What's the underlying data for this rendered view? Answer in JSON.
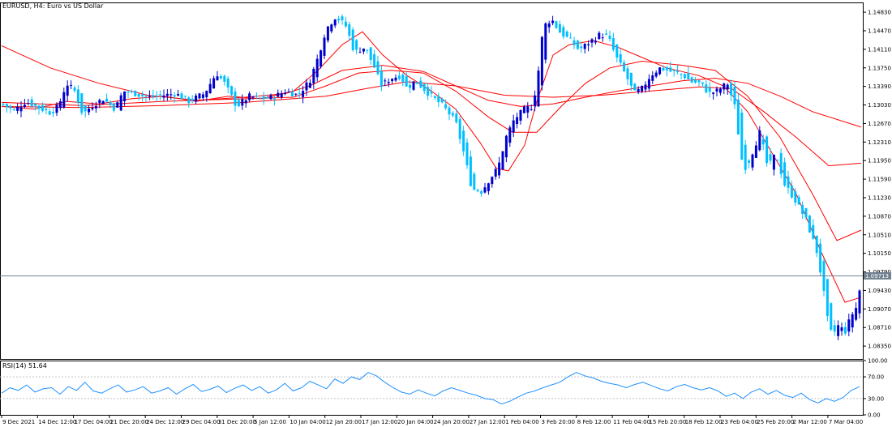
{
  "header": {
    "title": "EURUSD, H4:  Euro vs US Dollar",
    "rsi_label": "RSI(14) 51.64"
  },
  "current_price": "1.09713",
  "colors": {
    "bull": "#0000cd",
    "bear": "#00bfff",
    "ma": "#ff0000",
    "rsi_line": "#1e90ff",
    "current_line": "#708090",
    "grid_dotted": "#c0c0c0"
  },
  "chart_data": [
    {
      "type": "candlestick",
      "title": "EURUSD, H4:  Euro vs US Dollar",
      "ylim": [
        1.081,
        1.1502
      ],
      "y_ticks": [
        "1.14830",
        "1.14470",
        "1.14110",
        "1.13750",
        "1.13390",
        "1.13030",
        "1.12670",
        "1.12310",
        "1.11950",
        "1.11590",
        "1.11230",
        "1.10870",
        "1.10510",
        "1.10150",
        "1.09790",
        "1.09430",
        "1.09070",
        "1.08710",
        "1.08350"
      ],
      "x_ticks": [
        "9 Dec 2021",
        "14 Dec 12:00",
        "17 Dec 04:00",
        "21 Dec 20:00",
        "24 Dec 12:00",
        "29 Dec 04:00",
        "31 Dec 20:00",
        "5 Jan 12:00",
        "10 Jan 04:00",
        "12 Jan 20:00",
        "17 Jan 12:00",
        "20 Jan 04:00",
        "24 Jan 20:00",
        "27 Jan 12:00",
        "1 Feb 04:00",
        "3 Feb 20:00",
        "8 Feb 12:00",
        "11 Feb 04:00",
        "15 Feb 20:00",
        "18 Feb 12:00",
        "23 Feb 04:00",
        "25 Feb 20:00",
        "2 Mar 12:00",
        "7 Mar 04:00"
      ],
      "close_path": [
        [
          0,
          1.1305
        ],
        [
          15,
          1.1292
        ],
        [
          30,
          1.131
        ],
        [
          45,
          1.1298
        ],
        [
          60,
          1.1288
        ],
        [
          70,
          1.13
        ],
        [
          80,
          1.1345
        ],
        [
          90,
          1.133
        ],
        [
          100,
          1.1285
        ],
        [
          110,
          1.13
        ],
        [
          125,
          1.1315
        ],
        [
          140,
          1.1295
        ],
        [
          150,
          1.133
        ],
        [
          165,
          1.1325
        ],
        [
          180,
          1.1318
        ],
        [
          200,
          1.1322
        ],
        [
          215,
          1.1325
        ],
        [
          230,
          1.131
        ],
        [
          250,
          1.1325
        ],
        [
          265,
          1.1365
        ],
        [
          275,
          1.1345
        ],
        [
          290,
          1.13
        ],
        [
          305,
          1.132
        ],
        [
          320,
          1.1315
        ],
        [
          335,
          1.1318
        ],
        [
          350,
          1.133
        ],
        [
          365,
          1.1322
        ],
        [
          380,
          1.135
        ],
        [
          390,
          1.1395
        ],
        [
          400,
          1.145
        ],
        [
          412,
          1.1475
        ],
        [
          425,
          1.1455
        ],
        [
          435,
          1.1405
        ],
        [
          448,
          1.1415
        ],
        [
          460,
          1.1375
        ],
        [
          468,
          1.134
        ],
        [
          480,
          1.1355
        ],
        [
          492,
          1.136
        ],
        [
          500,
          1.1335
        ],
        [
          510,
          1.135
        ],
        [
          520,
          1.1335
        ],
        [
          530,
          1.132
        ],
        [
          545,
          1.13
        ],
        [
          560,
          1.127
        ],
        [
          570,
          1.121
        ],
        [
          580,
          1.114
        ],
        [
          592,
          1.1135
        ],
        [
          602,
          1.116
        ],
        [
          612,
          1.118
        ],
        [
          622,
          1.124
        ],
        [
          632,
          1.1275
        ],
        [
          645,
          1.1295
        ],
        [
          655,
          1.13
        ],
        [
          662,
          1.137
        ],
        [
          668,
          1.1455
        ],
        [
          678,
          1.147
        ],
        [
          688,
          1.1445
        ],
        [
          700,
          1.143
        ],
        [
          712,
          1.141
        ],
        [
          725,
          1.1425
        ],
        [
          738,
          1.144
        ],
        [
          748,
          1.1435
        ],
        [
          758,
          1.1395
        ],
        [
          770,
          1.136
        ],
        [
          780,
          1.1325
        ],
        [
          790,
          1.1335
        ],
        [
          800,
          1.136
        ],
        [
          812,
          1.1375
        ],
        [
          825,
          1.1368
        ],
        [
          840,
          1.1362
        ],
        [
          850,
          1.1348
        ],
        [
          862,
          1.1345
        ],
        [
          872,
          1.1325
        ],
        [
          882,
          1.133
        ],
        [
          895,
          1.1345
        ],
        [
          905,
          1.1295
        ],
        [
          912,
          1.12
        ],
        [
          918,
          1.118
        ],
        [
          928,
          1.122
        ],
        [
          935,
          1.125
        ],
        [
          945,
          1.118
        ],
        [
          955,
          1.121
        ],
        [
          965,
          1.115
        ],
        [
          978,
          1.112
        ],
        [
          992,
          1.108
        ],
        [
          1005,
          1.102
        ],
        [
          1012,
          1.096
        ],
        [
          1018,
          1.089
        ],
        [
          1024,
          1.0855
        ],
        [
          1032,
          1.0875
        ],
        [
          1040,
          1.0862
        ],
        [
          1048,
          1.0895
        ],
        [
          1056,
          1.0915
        ],
        [
          1060,
          1.0971
        ]
      ],
      "moving_averages": [
        {
          "points": [
            [
              0,
              1.1418
            ],
            [
              60,
              1.1375
            ],
            [
              120,
              1.1345
            ],
            [
              180,
              1.1322
            ],
            [
              240,
              1.1312
            ],
            [
              300,
              1.1318
            ],
            [
              350,
              1.1325
            ],
            [
              380,
              1.134
            ],
            [
              420,
              1.137
            ],
            [
              470,
              1.138
            ],
            [
              520,
              1.1368
            ],
            [
              560,
              1.134
            ],
            [
              600,
              1.1312
            ],
            [
              640,
              1.13
            ],
            [
              680,
              1.1305
            ],
            [
              720,
              1.1318
            ],
            [
              760,
              1.133
            ],
            [
              800,
              1.134
            ],
            [
              840,
              1.135
            ],
            [
              880,
              1.1355
            ],
            [
              920,
              1.1345
            ],
            [
              960,
              1.132
            ],
            [
              1000,
              1.129
            ],
            [
              1060,
              1.126
            ]
          ]
        },
        {
          "points": [
            [
              0,
              1.13
            ],
            [
              100,
              1.1298
            ],
            [
              200,
              1.1302
            ],
            [
              300,
              1.1308
            ],
            [
              400,
              1.132
            ],
            [
              450,
              1.1335
            ],
            [
              500,
              1.1348
            ],
            [
              560,
              1.134
            ],
            [
              620,
              1.1322
            ],
            [
              680,
              1.1318
            ],
            [
              740,
              1.1322
            ],
            [
              800,
              1.133
            ],
            [
              860,
              1.1338
            ],
            [
              900,
              1.1335
            ],
            [
              940,
              1.129
            ],
            [
              980,
              1.124
            ],
            [
              1020,
              1.1185
            ],
            [
              1060,
              1.119
            ]
          ]
        },
        {
          "points": [
            [
              0,
              1.1308
            ],
            [
              100,
              1.1302
            ],
            [
              200,
              1.131
            ],
            [
              300,
              1.1315
            ],
            [
              360,
              1.1318
            ],
            [
              400,
              1.134
            ],
            [
              440,
              1.1365
            ],
            [
              480,
              1.137
            ],
            [
              520,
              1.1365
            ],
            [
              560,
              1.133
            ],
            [
              600,
              1.128
            ],
            [
              630,
              1.125
            ],
            [
              660,
              1.125
            ],
            [
              690,
              1.13
            ],
            [
              720,
              1.1345
            ],
            [
              750,
              1.1375
            ],
            [
              790,
              1.1388
            ],
            [
              840,
              1.138
            ],
            [
              880,
              1.137
            ],
            [
              920,
              1.132
            ],
            [
              960,
              1.124
            ],
            [
              1000,
              1.113
            ],
            [
              1030,
              1.104
            ],
            [
              1060,
              1.106
            ]
          ]
        },
        {
          "points": [
            [
              0,
              1.13
            ],
            [
              40,
              1.1295
            ],
            [
              80,
              1.131
            ],
            [
              120,
              1.1305
            ],
            [
              160,
              1.1315
            ],
            [
              200,
              1.132
            ],
            [
              240,
              1.131
            ],
            [
              280,
              1.132
            ],
            [
              320,
              1.1315
            ],
            [
              360,
              1.133
            ],
            [
              390,
              1.137
            ],
            [
              420,
              1.142
            ],
            [
              445,
              1.1445
            ],
            [
              470,
              1.14
            ],
            [
              500,
              1.136
            ],
            [
              530,
              1.133
            ],
            [
              560,
              1.1295
            ],
            [
              590,
              1.123
            ],
            [
              610,
              1.118
            ],
            [
              625,
              1.1175
            ],
            [
              645,
              1.1225
            ],
            [
              660,
              1.131
            ],
            [
              680,
              1.14
            ],
            [
              700,
              1.142
            ],
            [
              730,
              1.1428
            ],
            [
              760,
              1.1415
            ],
            [
              790,
              1.1395
            ],
            [
              820,
              1.1375
            ],
            [
              860,
              1.136
            ],
            [
              890,
              1.134
            ],
            [
              920,
              1.129
            ],
            [
              950,
              1.121
            ],
            [
              980,
              1.113
            ],
            [
              1010,
              1.102
            ],
            [
              1040,
              1.092
            ],
            [
              1060,
              1.093
            ]
          ]
        }
      ]
    },
    {
      "type": "line",
      "title": "RSI(14) 51.64",
      "ylim": [
        0,
        100
      ],
      "y_ticks": [
        "100.00",
        "70.00",
        "30.00",
        "0.00"
      ],
      "levels": [
        70,
        30
      ],
      "values": [
        40,
        50,
        45,
        55,
        42,
        48,
        50,
        38,
        52,
        45,
        60,
        44,
        40,
        48,
        55,
        42,
        46,
        52,
        40,
        44,
        50,
        38,
        48,
        56,
        43,
        47,
        53,
        41,
        49,
        55,
        45,
        52,
        40,
        46,
        58,
        44,
        50,
        62,
        55,
        48,
        66,
        58,
        70,
        65,
        78,
        72,
        60,
        50,
        42,
        38,
        46,
        40,
        35,
        44,
        50,
        45,
        40,
        36,
        30,
        28,
        20,
        25,
        33,
        40,
        44,
        50,
        55,
        60,
        70,
        78,
        72,
        68,
        62,
        58,
        55,
        50,
        56,
        60,
        54,
        48,
        44,
        52,
        56,
        50,
        46,
        50,
        44,
        34,
        40,
        30,
        42,
        48,
        38,
        45,
        36,
        32,
        40,
        28,
        22,
        30,
        25,
        32,
        45,
        52
      ]
    }
  ]
}
